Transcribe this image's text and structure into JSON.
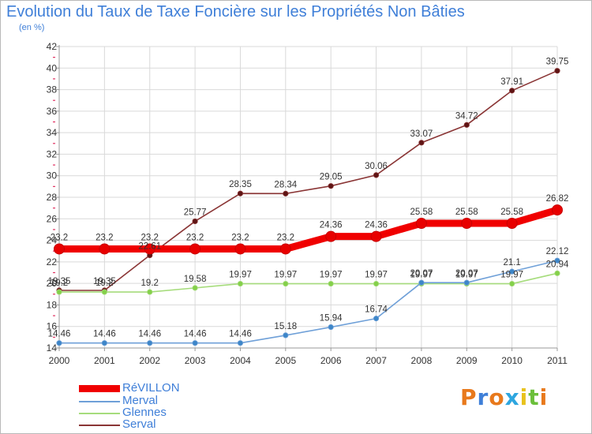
{
  "header": {
    "title": "Evolution du Taux de Taxe Foncière sur les Propriétés Non Bâties",
    "subtitle": "(en %)"
  },
  "logo": {
    "letters": [
      "P",
      "r",
      "o",
      "x",
      "i",
      "t",
      "i"
    ]
  },
  "colors": {
    "accent_text": "#3f7fd8",
    "grid": "#d9d9d9",
    "axis_tick": "#e03060",
    "logo_letters": [
      "#e8791c",
      "#3f7fd8",
      "#e8791c",
      "#2ea6df",
      "#e8c21c",
      "#6bbf3a",
      "#e8791c"
    ]
  },
  "chart_data": {
    "type": "line",
    "title": "Evolution du Taux de Taxe Foncière sur les Propriétés Non Bâties",
    "ylabel": "(en %)",
    "x": [
      "2000",
      "2001",
      "2002",
      "2003",
      "2004",
      "2005",
      "2006",
      "2007",
      "2008",
      "2009",
      "2010",
      "2011"
    ],
    "ylim": [
      14,
      42
    ],
    "yticks": [
      14,
      16,
      18,
      20,
      22,
      24,
      26,
      28,
      30,
      32,
      34,
      36,
      38,
      40,
      42
    ],
    "grid": true,
    "legend": "bottom-left",
    "series": [
      {
        "name": "RéVILLON",
        "color": "#f00000",
        "marker_fill": "#e80000",
        "width": 9,
        "values": [
          23.2,
          23.2,
          23.2,
          23.2,
          23.2,
          23.2,
          24.36,
          24.36,
          25.58,
          25.58,
          25.58,
          26.82
        ],
        "labels": [
          "23.2",
          "23.2",
          "23.2",
          "23.2",
          "23.2",
          "23.2",
          "24.36",
          "24.36",
          "25.58",
          "25.58",
          "25.58",
          "26.82"
        ]
      },
      {
        "name": "Merval",
        "color": "#6fa0d8",
        "marker_fill": "#3d86c8",
        "width": 1.6,
        "values": [
          14.46,
          14.46,
          14.46,
          14.46,
          14.46,
          15.18,
          15.94,
          16.74,
          20.07,
          20.07,
          21.1,
          22.12
        ],
        "labels": [
          "14.46",
          "14.46",
          "14.46",
          "14.46",
          "14.46",
          "15.18",
          "15.94",
          "16.74",
          "20.07",
          "20.07",
          "21.1",
          "22.12"
        ]
      },
      {
        "name": "Glennes",
        "color": "#a6dc7c",
        "marker_fill": "#84d04a",
        "width": 1.6,
        "values": [
          19.2,
          19.2,
          19.2,
          19.58,
          19.97,
          19.97,
          19.97,
          19.97,
          19.97,
          19.97,
          19.97,
          20.94
        ],
        "labels": [
          "19.2",
          "19.2",
          "19.2",
          "19.58",
          "19.97",
          "19.97",
          "19.97",
          "19.97",
          "19.97",
          "19.97",
          "19.97",
          "20.94"
        ]
      },
      {
        "name": "Serval",
        "color": "#8a3535",
        "marker_fill": "#5e1414",
        "width": 1.6,
        "values": [
          19.35,
          19.35,
          22.61,
          25.77,
          28.35,
          28.34,
          29.05,
          30.06,
          33.07,
          34.72,
          37.91,
          39.75
        ],
        "labels": [
          "19.35",
          "19.35",
          "22.61",
          "25.77",
          "28.35",
          "28.34",
          "29.05",
          "30.06",
          "33.07",
          "34.72",
          "37.91",
          "39.75"
        ]
      }
    ]
  }
}
